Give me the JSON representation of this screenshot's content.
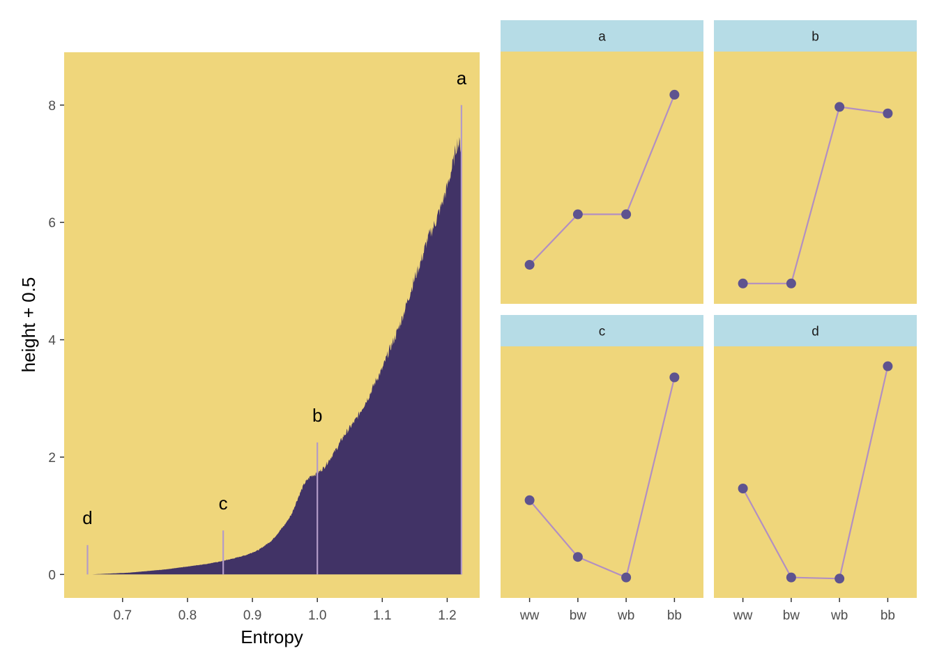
{
  "chart_data": [
    {
      "type": "area",
      "xlabel": "Entropy",
      "ylabel": "height + 0.5",
      "xlim": [
        0.61,
        1.25
      ],
      "ylim": [
        -0.4,
        8.9
      ],
      "x_ticks": [
        0.7,
        0.8,
        0.9,
        1.0,
        1.1,
        1.2
      ],
      "x_tick_labels": [
        "0.7",
        "0.8",
        "0.9",
        "1.0",
        "1.1",
        "1.2"
      ],
      "y_ticks": [
        0,
        2,
        4,
        6,
        8
      ],
      "y_tick_labels": [
        "0",
        "2",
        "4",
        "6",
        "8"
      ],
      "grid": false,
      "series": [
        {
          "x": [
            0.635,
            0.65,
            0.67,
            0.69,
            0.71,
            0.73,
            0.75,
            0.77,
            0.79,
            0.81,
            0.83,
            0.85,
            0.87,
            0.89,
            0.91,
            0.93,
            0.95,
            0.96,
            0.97,
            0.98,
            0.99,
            1.0,
            1.01,
            1.02,
            1.03,
            1.04,
            1.05,
            1.06,
            1.07,
            1.08,
            1.09,
            1.1,
            1.11,
            1.12,
            1.13,
            1.14,
            1.15,
            1.16,
            1.17,
            1.18,
            1.19,
            1.2,
            1.21,
            1.215,
            1.222
          ],
          "y": [
            0.0,
            0.0,
            0.01,
            0.02,
            0.03,
            0.05,
            0.07,
            0.09,
            0.12,
            0.15,
            0.18,
            0.22,
            0.27,
            0.33,
            0.42,
            0.58,
            0.85,
            1.02,
            1.3,
            1.55,
            1.68,
            1.72,
            1.82,
            1.98,
            2.15,
            2.35,
            2.5,
            2.65,
            2.85,
            3.05,
            3.3,
            3.5,
            3.8,
            4.05,
            4.35,
            4.7,
            5.05,
            5.35,
            5.72,
            5.95,
            6.25,
            6.6,
            7.05,
            7.35,
            7.3
          ]
        }
      ],
      "colors": {
        "panel": "#efd67b",
        "fill": "#413366",
        "marker": "#b39bc8"
      },
      "annotations": [
        {
          "label": "a",
          "x": 1.222,
          "y": 8.0
        },
        {
          "label": "b",
          "x": 1.0,
          "y": 2.25
        },
        {
          "label": "c",
          "x": 0.855,
          "y": 0.75
        },
        {
          "label": "d",
          "x": 0.646,
          "y": 0.5
        }
      ]
    },
    {
      "type": "line",
      "facet_strips": [
        "a",
        "b",
        "c",
        "d"
      ],
      "categories": [
        "ww",
        "bw",
        "wb",
        "bb"
      ],
      "series": [
        {
          "name": "a",
          "values": [
            5.28,
            5.9,
            5.9,
            7.37
          ]
        },
        {
          "name": "b",
          "values": [
            5.05,
            5.05,
            7.22,
            7.14
          ]
        },
        {
          "name": "c",
          "values": [
            1.12,
            0.15,
            -0.2,
            3.22
          ]
        },
        {
          "name": "d",
          "values": [
            1.32,
            -0.2,
            -0.22,
            3.41
          ]
        }
      ],
      "row_ylim": [
        [
          4.8,
          7.9
        ],
        [
          -0.55,
          3.75
        ]
      ],
      "grid": false,
      "colors": {
        "panel": "#efd67b",
        "strip": "#b6dce6",
        "point": "#5e538f",
        "line": "#b28fc2"
      }
    }
  ]
}
